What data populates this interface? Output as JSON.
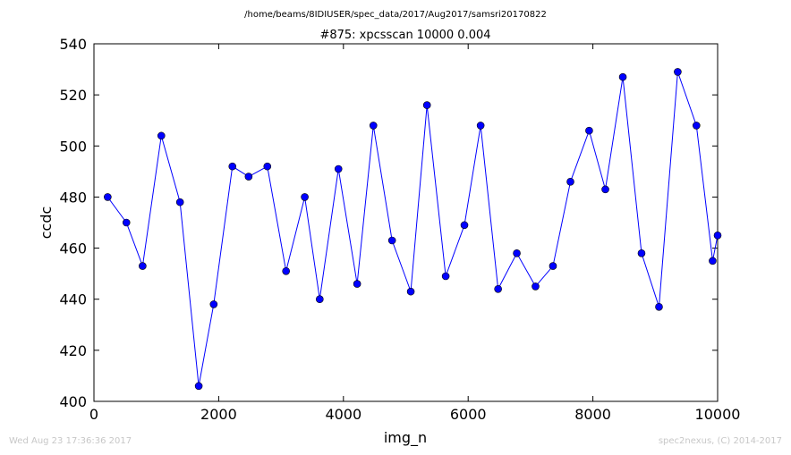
{
  "header": {
    "suptitle": "/home/beams/8IDIUSER/spec_data/2017/Aug2017/samsri20170822"
  },
  "footer": {
    "left": "Wed Aug 23 17:36:36 2017",
    "right": "spec2nexus, (C) 2014-2017"
  },
  "colors": {
    "series": "#0000ff",
    "axes": "#000000",
    "footer_text": "#c7c7c7"
  },
  "chart_data": {
    "type": "line",
    "title": "#875: xpcsscan 10000 0.004",
    "xlabel": "img_n",
    "ylabel": "ccdc",
    "xlim": [
      0,
      10000
    ],
    "ylim": [
      400,
      540
    ],
    "xticks": [
      0,
      2000,
      4000,
      6000,
      8000,
      10000
    ],
    "yticks": [
      400,
      420,
      440,
      460,
      480,
      500,
      520,
      540
    ],
    "grid": false,
    "series": [
      {
        "marker": "circle",
        "x": [
          220,
          520,
          780,
          1080,
          1380,
          1680,
          1920,
          2220,
          2480,
          2780,
          3080,
          3380,
          3620,
          3920,
          4220,
          4480,
          4780,
          5080,
          5340,
          5640,
          5940,
          6200,
          6480,
          6780,
          7080,
          7360,
          7640,
          7940,
          8200,
          8480,
          8780,
          9060,
          9360,
          9660,
          9920,
          10000
        ],
        "y": [
          480,
          470,
          453,
          504,
          478,
          406,
          438,
          492,
          488,
          492,
          451,
          480,
          440,
          491,
          446,
          508,
          463,
          443,
          516,
          449,
          469,
          508,
          444,
          458,
          445,
          453,
          486,
          506,
          483,
          527,
          458,
          437,
          529,
          508,
          455,
          465
        ]
      }
    ]
  }
}
